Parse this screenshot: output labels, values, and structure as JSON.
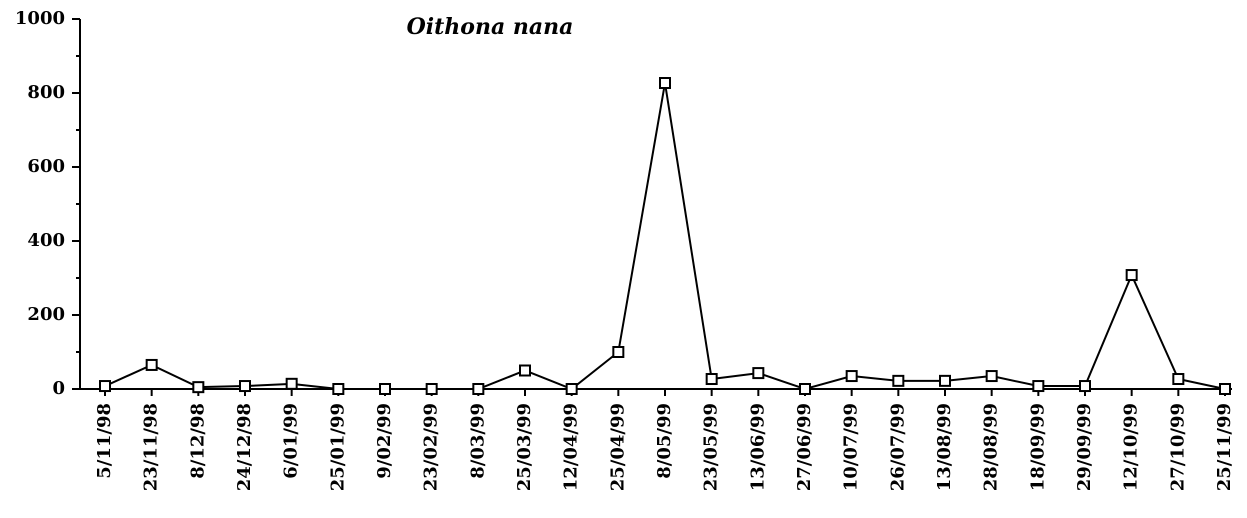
{
  "chart_data": {
    "type": "line",
    "title": "Oithona nana",
    "categories": [
      "5/11/98",
      "23/11/98",
      "8/12/98",
      "24/12/98",
      "6/01/99",
      "25/01/99",
      "9/02/99",
      "23/02/99",
      "8/03/99",
      "25/03/99",
      "12/04/99",
      "25/04/99",
      "8/05/99",
      "23/05/99",
      "13/06/99",
      "27/06/99",
      "10/07/99",
      "26/07/99",
      "13/08/99",
      "28/08/99",
      "18/09/99",
      "29/09/99",
      "12/10/99",
      "27/10/99",
      "25/11/99"
    ],
    "values": [
      8,
      65,
      5,
      8,
      14,
      0,
      0,
      0,
      0,
      50,
      0,
      100,
      827,
      27,
      43,
      0,
      35,
      22,
      22,
      35,
      8,
      8,
      308,
      27,
      0
    ],
    "color": "#000000",
    "ylim": [
      0,
      1000
    ],
    "yticks": [
      0,
      200,
      400,
      600,
      800,
      1000
    ],
    "minor_yticks": [
      100,
      300,
      500,
      700,
      900
    ]
  }
}
